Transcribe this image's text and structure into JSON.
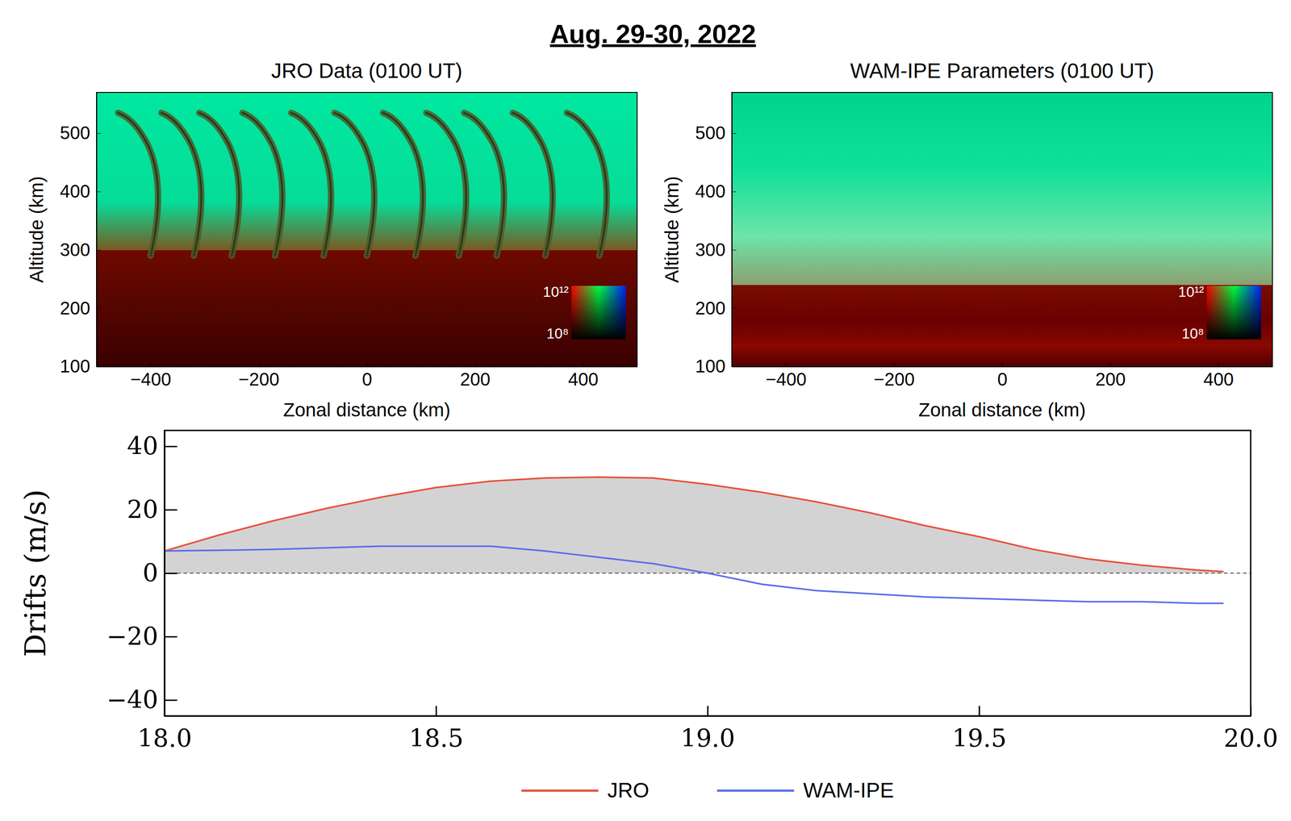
{
  "title": "Aug. 29-30, 2022",
  "chart_data": [
    {
      "type": "image",
      "title": "JRO Data (0100 UT)",
      "xlabel": "Zonal distance (km)",
      "ylabel": "Altitude (km)",
      "xlim": [
        -500,
        500
      ],
      "ylim": [
        100,
        570
      ],
      "xticks": [
        {
          "value": -400,
          "label": "−400"
        },
        {
          "value": -200,
          "label": "−200"
        },
        0,
        200,
        400
      ],
      "yticks": [
        100,
        200,
        300,
        400,
        500
      ],
      "bottomside_altitude": 300,
      "plume_x": [
        -400,
        -320,
        -250,
        -170,
        -80,
        0,
        90,
        170,
        240,
        330,
        430
      ],
      "colorbar": {
        "range": [
          100000000,
          1000000000000
        ],
        "ticks": [
          {
            "value": 1000000000000,
            "label": "10¹²"
          },
          {
            "value": 100000000,
            "label": "10⁸"
          }
        ]
      }
    },
    {
      "type": "image",
      "title": "WAM-IPE Parameters (0100 UT)",
      "xlabel": "Zonal distance (km)",
      "ylabel": "Altitude (km)",
      "xlim": [
        -500,
        500
      ],
      "ylim": [
        100,
        570
      ],
      "xticks": [
        {
          "value": -400,
          "label": "−400"
        },
        {
          "value": -200,
          "label": "−200"
        },
        0,
        200,
        400
      ],
      "yticks": [
        100,
        200,
        300,
        400,
        500
      ],
      "bottomside_altitude": 240,
      "plume_x": [],
      "colorbar": {
        "range": [
          100000000,
          1000000000000
        ],
        "ticks": [
          {
            "value": 1000000000000,
            "label": "10¹²"
          },
          {
            "value": 100000000,
            "label": "10⁸"
          }
        ]
      }
    },
    {
      "type": "line",
      "ylabel": "Drifts (m/s)",
      "xlim": [
        18,
        20
      ],
      "ylim": [
        -45,
        45
      ],
      "xticks": [
        {
          "value": 18,
          "label": "18.0"
        },
        {
          "value": 18.5,
          "label": "18.5"
        },
        {
          "value": 19,
          "label": "19.0"
        },
        {
          "value": 19.5,
          "label": "19.5"
        },
        {
          "value": 20,
          "label": "20.0"
        }
      ],
      "yticks": [
        {
          "value": -40,
          "label": "−40"
        },
        {
          "value": -20,
          "label": "−20"
        },
        0,
        20,
        40
      ],
      "hline": 0,
      "legend": "bottom",
      "x": [
        18.0,
        18.1,
        18.2,
        18.3,
        18.4,
        18.5,
        18.6,
        18.7,
        18.8,
        18.9,
        19.0,
        19.1,
        19.2,
        19.3,
        19.4,
        19.5,
        19.6,
        19.7,
        19.8,
        19.9,
        19.95
      ],
      "series": [
        {
          "name": "JRO",
          "color": "#e8503a",
          "type": "area",
          "values": [
            7,
            12,
            16.5,
            20.5,
            24,
            27,
            29,
            30,
            30.3,
            30,
            28,
            25.5,
            22.5,
            19,
            15,
            11.5,
            7.5,
            4.5,
            2.5,
            1,
            0.5
          ]
        },
        {
          "name": "WAM-IPE",
          "color": "#5b6ee8",
          "type": "line",
          "values": [
            7,
            7.2,
            7.5,
            8,
            8.5,
            8.5,
            8.5,
            7,
            5,
            3,
            0,
            -3.5,
            -5.5,
            -6.5,
            -7.5,
            -8,
            -8.5,
            -9,
            -9,
            -9.5,
            -9.5
          ]
        }
      ]
    }
  ]
}
